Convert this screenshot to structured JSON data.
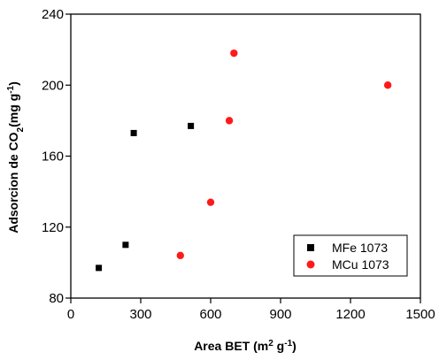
{
  "chart_data": {
    "type": "scatter",
    "title": "",
    "xlabel": {
      "main": "Area BET (m",
      "sup": "2",
      "tail": " g",
      "sup2": "-1",
      "close": ")"
    },
    "ylabel": {
      "main": "Adsorcion de CO",
      "sub": "2",
      "tail": "(mg g",
      "sup": "-1",
      "close": ")"
    },
    "xlim": [
      0,
      1500
    ],
    "ylim": [
      80,
      240
    ],
    "xticks": [
      "0",
      "300",
      "600",
      "900",
      "1200",
      "1500"
    ],
    "yticks": [
      "80",
      "120",
      "160",
      "200",
      "240"
    ],
    "grid": false,
    "legend_position": "bottom-right",
    "series": [
      {
        "name": "MFe 1073",
        "marker": "square",
        "color": "#000000",
        "points": [
          {
            "x": 120,
            "y": 97
          },
          {
            "x": 235,
            "y": 110
          },
          {
            "x": 270,
            "y": 173
          },
          {
            "x": 515,
            "y": 177
          }
        ]
      },
      {
        "name": "MCu 1073",
        "marker": "circle",
        "color": "#ff1a1a",
        "points": [
          {
            "x": 470,
            "y": 104
          },
          {
            "x": 600,
            "y": 134
          },
          {
            "x": 680,
            "y": 180
          },
          {
            "x": 700,
            "y": 218
          },
          {
            "x": 1360,
            "y": 200
          }
        ]
      }
    ]
  }
}
